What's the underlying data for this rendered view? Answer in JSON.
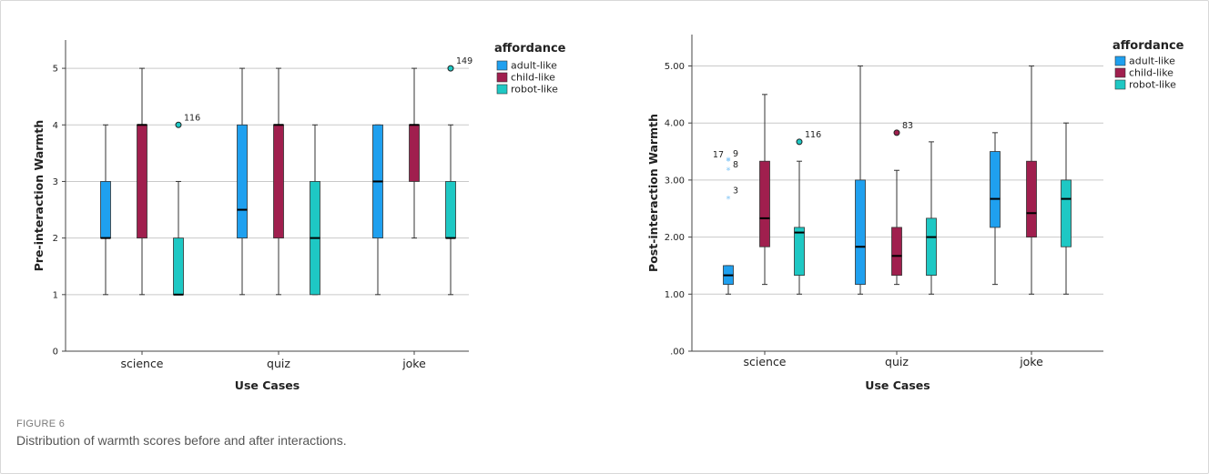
{
  "figure": {
    "label": "FIGURE 6",
    "caption": "Distribution of warmth scores before and after interactions."
  },
  "colors": {
    "adult-like": "#1fa0ef",
    "child-like": "#a01f4e",
    "robot-like": "#1ec8c4"
  },
  "chart_data": [
    {
      "type": "box",
      "title": "",
      "xlabel": "Use Cases",
      "ylabel": "Pre-interaction Warmth",
      "ylim": [
        0,
        5.5
      ],
      "yticks": [
        0,
        1,
        2,
        3,
        4,
        5
      ],
      "ytick_labels": [
        "0",
        "1",
        "2",
        "3",
        "4",
        "5"
      ],
      "grid": true,
      "legend": {
        "title": "affordance",
        "placement": "top-right"
      },
      "categories": [
        "science",
        "quiz",
        "joke"
      ],
      "series": [
        {
          "name": "adult-like",
          "boxes": [
            {
              "min": 1,
              "q1": 2,
              "median": 2,
              "q3": 3,
              "max": 4,
              "outliers": []
            },
            {
              "min": 1,
              "q1": 2,
              "median": 2.5,
              "q3": 4,
              "max": 5,
              "outliers": []
            },
            {
              "min": 1,
              "q1": 2,
              "median": 3,
              "q3": 4,
              "max": 4,
              "outliers": []
            }
          ]
        },
        {
          "name": "child-like",
          "boxes": [
            {
              "min": 1,
              "q1": 2,
              "median": 4,
              "q3": 4,
              "max": 5,
              "outliers": []
            },
            {
              "min": 1,
              "q1": 2,
              "median": 4,
              "q3": 4,
              "max": 5,
              "outliers": []
            },
            {
              "min": 2,
              "q1": 3,
              "median": 4,
              "q3": 4,
              "max": 5,
              "outliers": []
            }
          ]
        },
        {
          "name": "robot-like",
          "boxes": [
            {
              "min": 1,
              "q1": 1,
              "median": 1,
              "q3": 2,
              "max": 3,
              "outliers": [
                {
                  "value": 4,
                  "label": "116",
                  "kind": "circle"
                }
              ]
            },
            {
              "min": 1,
              "q1": 1,
              "median": 2,
              "q3": 3,
              "max": 4,
              "outliers": []
            },
            {
              "min": 1,
              "q1": 2,
              "median": 2,
              "q3": 3,
              "max": 4,
              "outliers": [
                {
                  "value": 5,
                  "label": "149",
                  "kind": "circle"
                }
              ]
            }
          ]
        }
      ]
    },
    {
      "type": "box",
      "title": "",
      "xlabel": "Use Cases",
      "ylabel": "Post-interaction Warmth",
      "ylim": [
        0,
        5.55
      ],
      "yticks": [
        0,
        1,
        2,
        3,
        4,
        5
      ],
      "ytick_labels": [
        ".00",
        "1.00",
        "2.00",
        "3.00",
        "4.00",
        "5.00"
      ],
      "grid": true,
      "legend": {
        "title": "affordance",
        "placement": "top-right"
      },
      "categories": [
        "science",
        "quiz",
        "joke"
      ],
      "series": [
        {
          "name": "adult-like",
          "boxes": [
            {
              "min": 1,
              "q1": 1.17,
              "median": 1.33,
              "q3": 1.5,
              "max": 1.5,
              "outliers": [
                {
                  "value": 3.33,
                  "label": "17",
                  "kind": "star"
                },
                {
                  "value": 3.35,
                  "label": "9",
                  "kind": "star"
                },
                {
                  "value": 3.17,
                  "label": "8",
                  "kind": "star"
                },
                {
                  "value": 2.67,
                  "label": "3",
                  "kind": "star"
                }
              ]
            },
            {
              "min": 1,
              "q1": 1.17,
              "median": 1.83,
              "q3": 3,
              "max": 5,
              "outliers": []
            },
            {
              "min": 1.17,
              "q1": 2.17,
              "median": 2.67,
              "q3": 3.5,
              "max": 3.83,
              "outliers": []
            }
          ]
        },
        {
          "name": "child-like",
          "boxes": [
            {
              "min": 1.17,
              "q1": 1.83,
              "median": 2.33,
              "q3": 3.33,
              "max": 4.5,
              "outliers": []
            },
            {
              "min": 1.17,
              "q1": 1.33,
              "median": 1.67,
              "q3": 2.17,
              "max": 3.17,
              "outliers": [
                {
                  "value": 3.83,
                  "label": "83",
                  "kind": "circle"
                }
              ]
            },
            {
              "min": 1,
              "q1": 2,
              "median": 2.42,
              "q3": 3.33,
              "max": 5,
              "outliers": []
            }
          ]
        },
        {
          "name": "robot-like",
          "boxes": [
            {
              "min": 1,
              "q1": 1.33,
              "median": 2.08,
              "q3": 2.17,
              "max": 3.33,
              "outliers": [
                {
                  "value": 3.67,
                  "label": "116",
                  "kind": "circle"
                }
              ]
            },
            {
              "min": 1,
              "q1": 1.33,
              "median": 2,
              "q3": 2.33,
              "max": 3.67,
              "outliers": []
            },
            {
              "min": 1,
              "q1": 1.83,
              "median": 2.67,
              "q3": 3,
              "max": 4,
              "outliers": []
            }
          ]
        }
      ]
    }
  ]
}
